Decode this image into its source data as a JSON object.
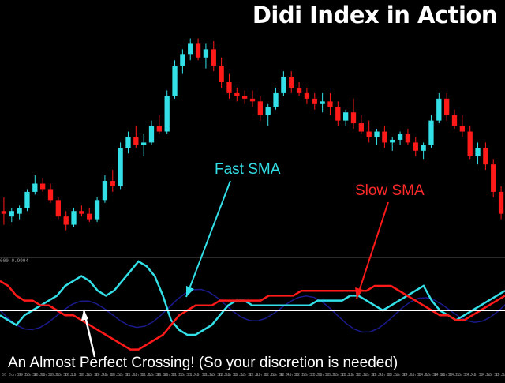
{
  "header": {
    "title": "Didi Index in Action"
  },
  "annotations": {
    "fast_sma": "Fast SMA",
    "slow_sma": "Slow SMA",
    "caption": "An Almost Perfect Crossing!  (So your discretion is needed)"
  },
  "indicator": {
    "label": "000 0.9994"
  },
  "time_axis": {
    "labels": [
      "30 Jun 09:55",
      "30 Jun 10:05",
      "30 Jun 10:15",
      "30 Jun 10:25",
      "30 Jun 10:35",
      "30 Jun 10:45",
      "30 Jun 10:55",
      "30 Jun 11:05",
      "30 Jun 11:15",
      "30 Jun 11:25",
      "30 Jun 11:35",
      "30 Jun 11:45",
      "30 Jun 11:55",
      "30 Jun 12:05",
      "30 Jun 12:15",
      "30 Jun 12:25",
      "30 Jun 12:35",
      "30 Jun 12:45",
      "30 Jun 12:55",
      "30 Jun 13:05",
      "30 Jun 13:15",
      "30 Jun 13:25",
      "30 Jun 13:35",
      "30 Jun 13:45",
      "30 Jun 13:55",
      "30 Jun 14:05",
      "30 Jun 14:15",
      "30 Jun 14:25",
      "30 Jun 14:35",
      "30 Jun 14:45",
      "30 Jun 14:55",
      "30 Jun 15:05",
      "30 Jun 15:15"
    ]
  },
  "colors": {
    "background": "#000000",
    "bull_candle": "#33e0e8",
    "bear_candle": "#ff1a1a",
    "fast_sma": "#33e0e8",
    "slow_sma": "#ff1a1a",
    "faded_line": "#1a1a8c",
    "center_line": "#ffffff",
    "separator": "#555555"
  },
  "chart_data": [
    {
      "type": "candlestick",
      "title": "",
      "candles": [
        {
          "o": 5,
          "h": 10,
          "l": 0,
          "c": 4
        },
        {
          "o": 3,
          "h": 6,
          "l": 1,
          "c": 5
        },
        {
          "o": 4,
          "h": 7,
          "l": 2,
          "c": 6
        },
        {
          "o": 6,
          "h": 13,
          "l": 5,
          "c": 12
        },
        {
          "o": 12,
          "h": 18,
          "l": 11,
          "c": 15
        },
        {
          "o": 15,
          "h": 17,
          "l": 12,
          "c": 13
        },
        {
          "o": 13,
          "h": 15,
          "l": 8,
          "c": 9
        },
        {
          "o": 9,
          "h": 10,
          "l": 2,
          "c": 3
        },
        {
          "o": 3,
          "h": 5,
          "l": -2,
          "c": 0
        },
        {
          "o": 0,
          "h": 6,
          "l": -1,
          "c": 5
        },
        {
          "o": 5,
          "h": 7,
          "l": 3,
          "c": 4
        },
        {
          "o": 4,
          "h": 6,
          "l": 1,
          "c": 2
        },
        {
          "o": 2,
          "h": 10,
          "l": 1,
          "c": 9
        },
        {
          "o": 9,
          "h": 18,
          "l": 8,
          "c": 16
        },
        {
          "o": 16,
          "h": 20,
          "l": 12,
          "c": 14
        },
        {
          "o": 14,
          "h": 30,
          "l": 13,
          "c": 28
        },
        {
          "o": 28,
          "h": 34,
          "l": 26,
          "c": 32
        },
        {
          "o": 32,
          "h": 36,
          "l": 28,
          "c": 29
        },
        {
          "o": 29,
          "h": 33,
          "l": 25,
          "c": 30
        },
        {
          "o": 30,
          "h": 38,
          "l": 29,
          "c": 36
        },
        {
          "o": 36,
          "h": 40,
          "l": 33,
          "c": 34
        },
        {
          "o": 34,
          "h": 49,
          "l": 33,
          "c": 47
        },
        {
          "o": 47,
          "h": 60,
          "l": 46,
          "c": 58
        },
        {
          "o": 58,
          "h": 64,
          "l": 55,
          "c": 62
        },
        {
          "o": 62,
          "h": 68,
          "l": 60,
          "c": 66
        },
        {
          "o": 66,
          "h": 68,
          "l": 60,
          "c": 61
        },
        {
          "o": 61,
          "h": 66,
          "l": 57,
          "c": 64
        },
        {
          "o": 64,
          "h": 67,
          "l": 56,
          "c": 58
        },
        {
          "o": 58,
          "h": 61,
          "l": 50,
          "c": 52
        },
        {
          "o": 52,
          "h": 55,
          "l": 46,
          "c": 48
        },
        {
          "o": 48,
          "h": 50,
          "l": 45,
          "c": 47
        },
        {
          "o": 47,
          "h": 49,
          "l": 44,
          "c": 46
        },
        {
          "o": 46,
          "h": 49,
          "l": 43,
          "c": 45
        },
        {
          "o": 45,
          "h": 47,
          "l": 38,
          "c": 40
        },
        {
          "o": 40,
          "h": 44,
          "l": 36,
          "c": 43
        },
        {
          "o": 43,
          "h": 50,
          "l": 42,
          "c": 48
        },
        {
          "o": 48,
          "h": 56,
          "l": 47,
          "c": 54
        },
        {
          "o": 54,
          "h": 56,
          "l": 48,
          "c": 50
        },
        {
          "o": 50,
          "h": 52,
          "l": 47,
          "c": 48
        },
        {
          "o": 48,
          "h": 50,
          "l": 44,
          "c": 46
        },
        {
          "o": 46,
          "h": 48,
          "l": 42,
          "c": 44
        },
        {
          "o": 44,
          "h": 48,
          "l": 41,
          "c": 45
        },
        {
          "o": 45,
          "h": 48,
          "l": 40,
          "c": 43
        },
        {
          "o": 43,
          "h": 45,
          "l": 36,
          "c": 38
        },
        {
          "o": 38,
          "h": 42,
          "l": 36,
          "c": 41
        },
        {
          "o": 41,
          "h": 46,
          "l": 35,
          "c": 37
        },
        {
          "o": 37,
          "h": 40,
          "l": 33,
          "c": 34
        },
        {
          "o": 34,
          "h": 38,
          "l": 30,
          "c": 32
        },
        {
          "o": 32,
          "h": 35,
          "l": 29,
          "c": 34
        },
        {
          "o": 34,
          "h": 36,
          "l": 28,
          "c": 30
        },
        {
          "o": 30,
          "h": 32,
          "l": 27,
          "c": 31
        },
        {
          "o": 31,
          "h": 34,
          "l": 29,
          "c": 33
        },
        {
          "o": 33,
          "h": 35,
          "l": 29,
          "c": 30
        },
        {
          "o": 30,
          "h": 32,
          "l": 25,
          "c": 27
        },
        {
          "o": 27,
          "h": 30,
          "l": 24,
          "c": 29
        },
        {
          "o": 29,
          "h": 40,
          "l": 28,
          "c": 38
        },
        {
          "o": 38,
          "h": 48,
          "l": 37,
          "c": 46
        },
        {
          "o": 46,
          "h": 48,
          "l": 38,
          "c": 40
        },
        {
          "o": 40,
          "h": 42,
          "l": 35,
          "c": 36
        },
        {
          "o": 36,
          "h": 40,
          "l": 32,
          "c": 34
        },
        {
          "o": 34,
          "h": 36,
          "l": 24,
          "c": 25
        },
        {
          "o": 25,
          "h": 30,
          "l": 22,
          "c": 28
        },
        {
          "o": 28,
          "h": 30,
          "l": 20,
          "c": 22
        },
        {
          "o": 22,
          "h": 24,
          "l": 10,
          "c": 12
        },
        {
          "o": 12,
          "h": 14,
          "l": 2,
          "c": 4
        }
      ]
    },
    {
      "type": "line",
      "title": "",
      "center": 0,
      "series": [
        {
          "color": "#33e0e8",
          "values": [
            -1,
            -2,
            -3,
            -1,
            0,
            1,
            2,
            3,
            5,
            6,
            7,
            6,
            4,
            3,
            4,
            6,
            8,
            10,
            9,
            7,
            3,
            -2,
            -4,
            -5,
            -5,
            -4,
            -3,
            -1,
            1,
            2,
            2,
            1,
            1,
            1,
            1,
            1,
            1,
            1,
            1,
            2,
            2,
            2,
            2,
            3,
            3,
            2,
            1,
            0,
            1,
            2,
            3,
            4,
            5,
            2,
            0,
            -1,
            -2,
            -1,
            0,
            1,
            2,
            3,
            4
          ]
        },
        {
          "color": "#ff1a1a",
          "values": [
            6,
            5,
            3,
            2,
            2,
            1,
            1,
            0,
            -1,
            -1,
            -2,
            -3,
            -4,
            -5,
            -6,
            -7,
            -8,
            -8,
            -7,
            -6,
            -5,
            -3,
            -1,
            0,
            1,
            1,
            1,
            2,
            2,
            2,
            2,
            2,
            2,
            3,
            3,
            3,
            3,
            4,
            4,
            4,
            4,
            4,
            4,
            4,
            4,
            4,
            5,
            5,
            5,
            4,
            3,
            2,
            1,
            0,
            -1,
            -1,
            -2,
            -2,
            -1,
            0,
            1,
            2,
            3
          ]
        }
      ]
    }
  ]
}
